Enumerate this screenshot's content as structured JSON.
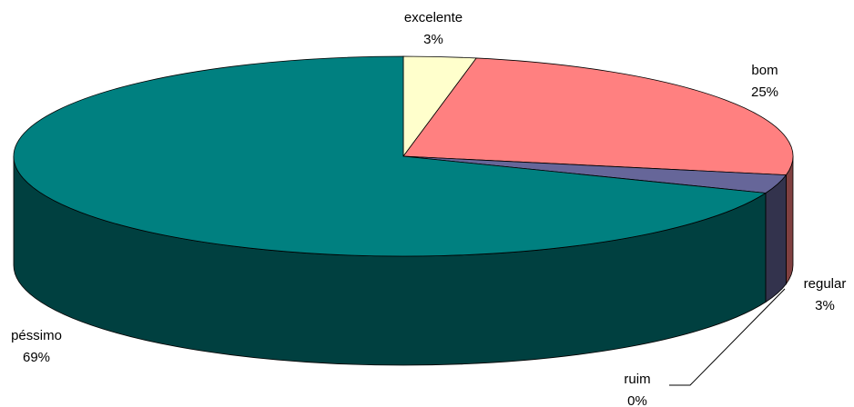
{
  "chart_data": {
    "type": "pie3d",
    "categories": [
      "excelente",
      "bom",
      "regular",
      "ruim",
      "péssimo"
    ],
    "values": [
      3,
      25,
      3,
      0,
      69
    ],
    "value_labels": [
      "3%",
      "25%",
      "3%",
      "0%",
      "69%"
    ],
    "colors": [
      "#ffffcc",
      "#ff8080",
      "#666699",
      "#0066cc",
      "#008080"
    ]
  }
}
